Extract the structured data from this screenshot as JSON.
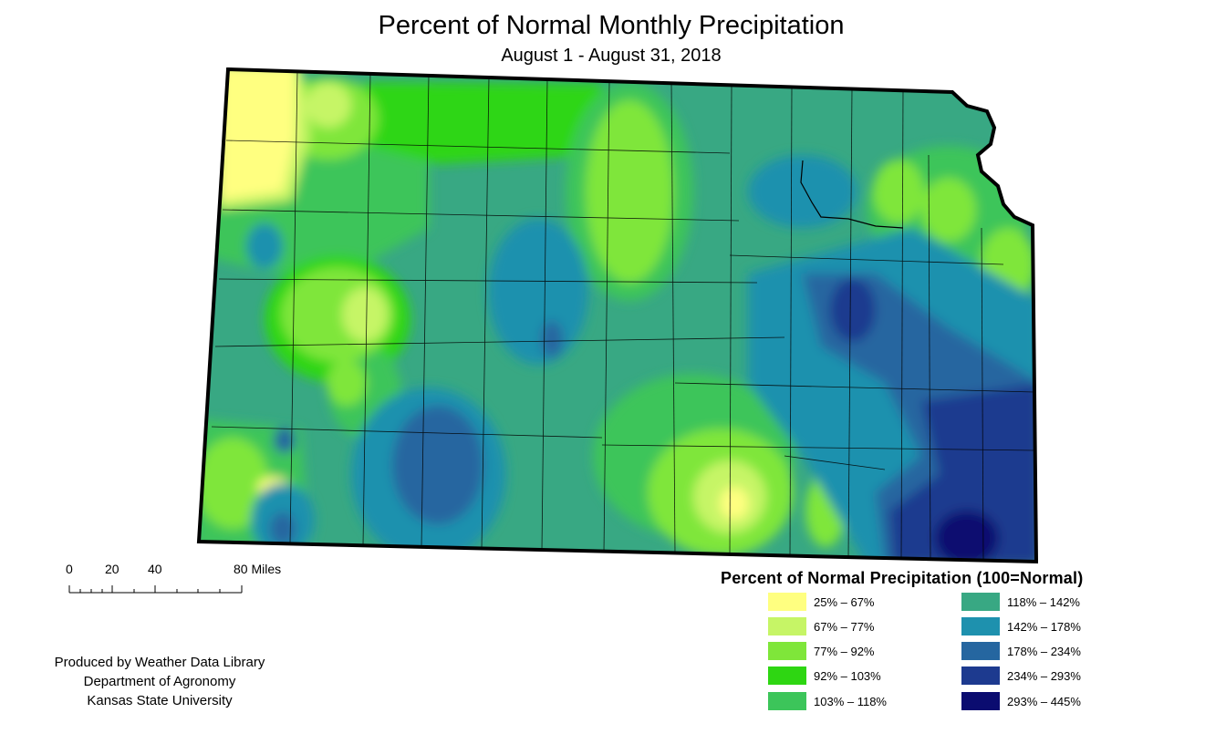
{
  "title": "Percent of Normal Monthly Precipitation",
  "subtitle": "August 1 - August 31, 2018",
  "scale_bar": {
    "labels": [
      "0",
      "20",
      "40",
      "80 Miles"
    ]
  },
  "credits": [
    "Produced by Weather Data Library",
    "Department of Agronomy",
    "Kansas State University"
  ],
  "legend": {
    "title": "Percent of Normal Precipitation (100=Normal)",
    "classes": [
      {
        "label": "25% – 67%",
        "color": "#ffff80"
      },
      {
        "label": "67% – 77%",
        "color": "#c6f566"
      },
      {
        "label": "77% – 92%",
        "color": "#7fe63a"
      },
      {
        "label": "92% – 103%",
        "color": "#2ed612"
      },
      {
        "label": "103% – 118%",
        "color": "#3cc55a"
      },
      {
        "label": "118% – 142%",
        "color": "#38a883"
      },
      {
        "label": "142% – 178%",
        "color": "#1e91ae"
      },
      {
        "label": "178% – 234%",
        "color": "#2566a0"
      },
      {
        "label": "234% – 293%",
        "color": "#1d3a8f"
      },
      {
        "label": "293% – 445%",
        "color": "#0b0c70"
      }
    ]
  },
  "map_colors": {
    "c1": "#ffff80",
    "c2": "#c6f566",
    "c3": "#7fe63a",
    "c4": "#2ed612",
    "c5": "#3cc55a",
    "c6": "#38a883",
    "c7": "#1e91ae",
    "c8": "#2566a0",
    "c9": "#1d3a8f",
    "c10": "#0b0c70",
    "border": "#000000"
  }
}
